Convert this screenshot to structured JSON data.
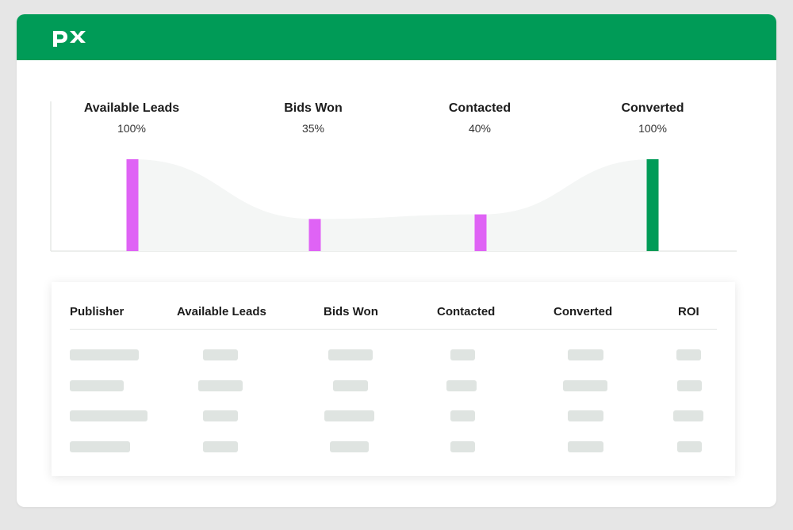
{
  "app": {
    "logo_text": "px",
    "colors": {
      "brand": "#009b57",
      "bar_primary": "#df63f5",
      "bar_final": "#009b57",
      "placeholder": "#dfe4e1"
    }
  },
  "funnel": {
    "stages": [
      {
        "label": "Available Leads",
        "percent": "100%",
        "value": 100
      },
      {
        "label": "Bids Won",
        "percent": "35%",
        "value": 35
      },
      {
        "label": "Contacted",
        "percent": "40%",
        "value": 40
      },
      {
        "label": "Converted",
        "percent": "100%",
        "value": 100
      }
    ]
  },
  "table": {
    "headers": [
      "Publisher",
      "Available Leads",
      "Bids Won",
      "Contacted",
      "Converted",
      "ROI"
    ],
    "rows": 4
  }
}
